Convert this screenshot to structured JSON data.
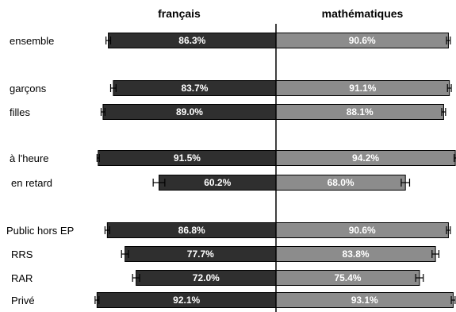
{
  "chart_data": {
    "type": "bar",
    "orientation": "horizontal-diverging",
    "series": [
      {
        "name": "français",
        "color": "#2f2f2f"
      },
      {
        "name": "mathématiques",
        "color": "#8c8c8c"
      }
    ],
    "rows": [
      {
        "label": "ensemble",
        "francais": 86.3,
        "francais_label": "86.3%",
        "francais_err": 1.2,
        "math": 90.6,
        "math_label": "90.6%",
        "math_err": 1.0
      },
      {
        "label": "garçons",
        "francais": 83.7,
        "francais_label": "83.7%",
        "francais_err": 1.4,
        "math": 91.1,
        "math_label": "91.1%",
        "math_err": 1.0
      },
      {
        "label": "filles",
        "francais": 89.0,
        "francais_label": "89.0%",
        "francais_err": 1.0,
        "math": 88.1,
        "math_label": "88.1%",
        "math_err": 1.0
      },
      {
        "label": "à l'heure",
        "francais": 91.5,
        "francais_label": "91.5%",
        "francais_err": 0.6,
        "math": 94.2,
        "math_label": "94.2%",
        "math_err": 0.6
      },
      {
        "label": "en retard",
        "francais": 60.2,
        "francais_label": "60.2%",
        "francais_err": 3.0,
        "math": 68.0,
        "math_label": "68.0%",
        "math_err": 2.2
      },
      {
        "label": "Public hors EP",
        "francais": 86.8,
        "francais_label": "86.8%",
        "francais_err": 1.2,
        "math": 90.6,
        "math_label": "90.6%",
        "math_err": 1.0
      },
      {
        "label": "RRS",
        "francais": 77.7,
        "francais_label": "77.7%",
        "francais_err": 1.8,
        "math": 83.8,
        "math_label": "83.8%",
        "math_err": 1.8
      },
      {
        "label": "RAR",
        "francais": 72.0,
        "francais_label": "72.0%",
        "francais_err": 1.8,
        "math": 75.4,
        "math_label": "75.4%",
        "math_err": 2.0
      },
      {
        "label": "Privé",
        "francais": 92.1,
        "francais_label": "92.1%",
        "francais_err": 1.0,
        "math": 93.1,
        "math_label": "93.1%",
        "math_err": 1.0
      }
    ],
    "range": [
      0,
      100
    ],
    "grid": false,
    "legend": "column headers at top"
  }
}
